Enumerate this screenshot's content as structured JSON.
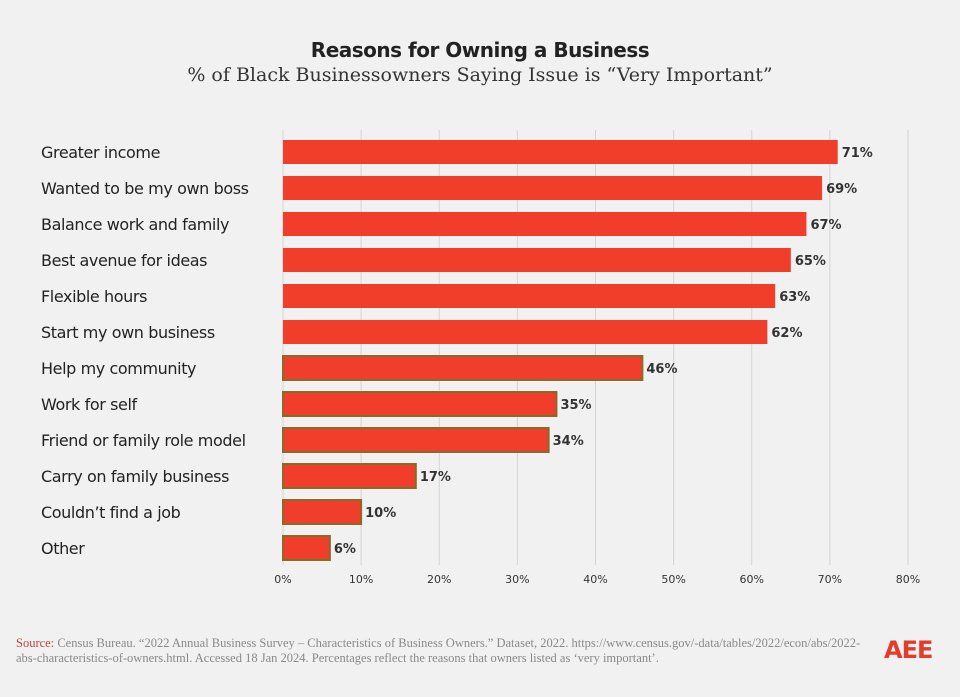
{
  "chart_data": {
    "type": "bar",
    "orientation": "horizontal",
    "title": "Reasons for Owning a Business",
    "subtitle": "% of Black Businessowners Saying Issue is “Very Important”",
    "categories": [
      "Greater income",
      "Wanted to be my own boss",
      "Balance work and family",
      "Best avenue for ideas",
      "Flexible hours",
      "Start my own business",
      "Help my community",
      "Work for self",
      "Friend or family role model",
      "Carry on family business",
      "Couldn’t find a job",
      "Other"
    ],
    "values": [
      71,
      69,
      67,
      65,
      63,
      62,
      46,
      35,
      34,
      17,
      10,
      6
    ],
    "data_labels": [
      "71%",
      "69%",
      "67%",
      "65%",
      "63%",
      "62%",
      "46%",
      "35%",
      "34%",
      "17%",
      "10%",
      "6%"
    ],
    "xlim": [
      0,
      80
    ],
    "xticks": [
      "0%",
      "10%",
      "20%",
      "30%",
      "40%",
      "50%",
      "60%",
      "70%",
      "80%"
    ],
    "grid": true,
    "bar_color": "#f03e2b",
    "outline_color": "#8a6a2a"
  },
  "footer": {
    "source_label": "Source:",
    "source_text": " Census Bureau. “2022 Annual Business Survey – Characteristics of Business Owners.” Dataset, 2022. https://www.census.gov/-data/tables/2022/econ/abs/2022-abs-characteristics-of-owners.html. Accessed 18 Jan 2024. Percentages reflect the reasons that owners listed as ‘very important’.",
    "logo": "AEE"
  }
}
